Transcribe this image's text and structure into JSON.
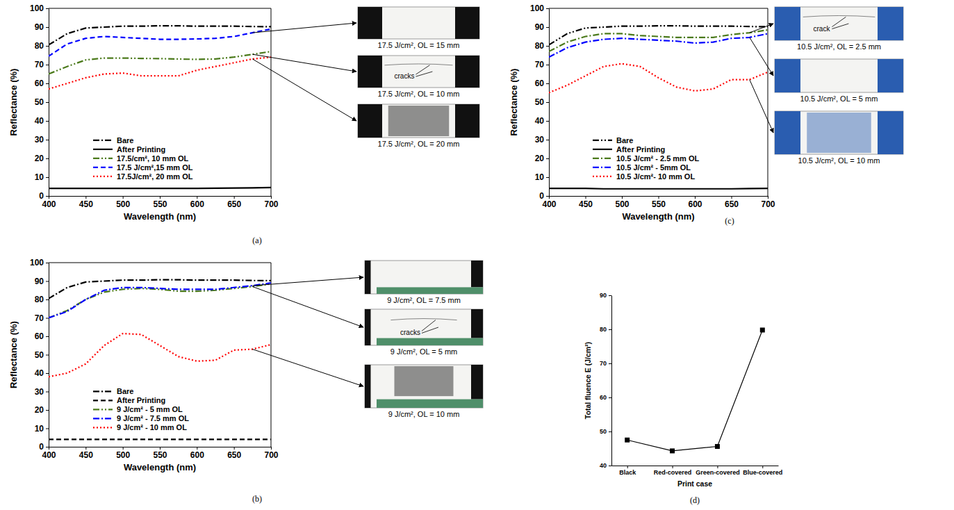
{
  "chart_data": [
    {
      "type": "line",
      "panel": "(a)",
      "x_label": "Wavelength (nm)",
      "y_label": "Reflectance (%)",
      "x": [
        400,
        425,
        450,
        475,
        500,
        525,
        550,
        575,
        600,
        625,
        650,
        675,
        700
      ],
      "xlim": [
        400,
        700
      ],
      "xticks": [
        400,
        450,
        500,
        550,
        600,
        650,
        700
      ],
      "ylim": [
        0,
        100
      ],
      "yticks": [
        0,
        10,
        20,
        30,
        40,
        50,
        60,
        70,
        80,
        90,
        100
      ],
      "legend": "lower left",
      "series": [
        {
          "name": "Bare",
          "color": "#000000",
          "line_style": "dash_dot",
          "values": [
            80.5,
            86.5,
            89.5,
            90,
            90.5,
            90.5,
            90.7,
            90.7,
            90.5,
            90.5,
            90.5,
            90.3,
            90.2
          ]
        },
        {
          "name": "After Printing",
          "color": "#000000",
          "line_style": "solid",
          "values": [
            4,
            4,
            4,
            4,
            4,
            4,
            4,
            4,
            4,
            4.1,
            4.2,
            4.3,
            4.5
          ]
        },
        {
          "name": "17.5/cm², 10 mm OL",
          "color": "#4b7a1b",
          "line_style": "dash_dot_dot",
          "values": [
            65,
            69,
            72.5,
            73.5,
            73.5,
            73.3,
            73.2,
            73,
            72.8,
            73,
            74,
            75.5,
            77
          ]
        },
        {
          "name": "17.5 J/cm²,15 mm OL",
          "color": "#0000ff",
          "line_style": "dashed",
          "values": [
            74.5,
            81,
            84,
            85,
            84.5,
            84,
            83.5,
            83.5,
            83.7,
            84,
            85,
            87,
            89
          ]
        },
        {
          "name": "17.5J/cm², 20 mm OL",
          "color": "#ff0000",
          "line_style": "dotted",
          "values": [
            57,
            60,
            63,
            65,
            65.5,
            64,
            64,
            64,
            67,
            69,
            71,
            73,
            74
          ]
        }
      ],
      "insets": [
        {
          "caption": "17.5 J/cm², OL = 15 mm"
        },
        {
          "caption": "17.5 J/cm², OL = 10 mm",
          "annotation": "cracks"
        },
        {
          "caption": "17.5 J/cm², OL = 20 mm"
        }
      ]
    },
    {
      "type": "line",
      "panel": "(b)",
      "x_label": "Wavelength (nm)",
      "y_label": "Reflectance (%)",
      "x": [
        400,
        425,
        450,
        475,
        500,
        525,
        550,
        575,
        600,
        625,
        650,
        675,
        700
      ],
      "xlim": [
        400,
        700
      ],
      "xticks": [
        400,
        450,
        500,
        550,
        600,
        650,
        700
      ],
      "ylim": [
        0,
        100
      ],
      "yticks": [
        0,
        10,
        20,
        30,
        40,
        50,
        60,
        70,
        80,
        90,
        100
      ],
      "legend": "lower left",
      "series": [
        {
          "name": "Bare",
          "color": "#000000",
          "line_style": "dash_dot",
          "values": [
            80.5,
            86.5,
            89.5,
            90,
            90.5,
            90.5,
            90.7,
            90.7,
            90.5,
            90.5,
            90.5,
            90.3,
            90.2
          ]
        },
        {
          "name": "After Printing",
          "color": "#000000",
          "line_style": "dashed",
          "values": [
            4,
            4,
            4,
            4,
            4,
            4,
            4,
            4,
            4,
            4,
            4,
            4,
            4
          ]
        },
        {
          "name": "9 J/cm² - 5 mm OL",
          "color": "#4b7a1b",
          "line_style": "dash_dot_dot",
          "values": [
            70,
            74,
            80,
            84,
            85.5,
            86,
            85.5,
            84.5,
            84.5,
            85,
            86,
            87,
            88.5
          ]
        },
        {
          "name": "9 J/cm² - 7.5 mm OL",
          "color": "#0000ff",
          "line_style": "dash_dot",
          "values": [
            70,
            73.5,
            80,
            85,
            86.5,
            86.5,
            86,
            85.5,
            85.5,
            85.5,
            86.5,
            87.5,
            89
          ]
        },
        {
          "name": "9 J/cm² - 10 mm OL",
          "color": "#ff0000",
          "line_style": "dotted",
          "values": [
            38,
            40,
            45,
            55,
            61.5,
            61,
            55,
            49,
            46.5,
            47,
            52.5,
            53,
            55.5
          ]
        }
      ],
      "insets": [
        {
          "caption": "9 J/cm², OL = 7.5 mm"
        },
        {
          "caption": "9 J/cm², OL = 5 mm",
          "annotation": "cracks"
        },
        {
          "caption": "9 J/cm², OL = 10 mm"
        }
      ]
    },
    {
      "type": "line",
      "panel": "(c)",
      "x_label": "Wavelength (nm)",
      "y_label": "Reflectance (%)",
      "x": [
        400,
        425,
        450,
        475,
        500,
        525,
        550,
        575,
        600,
        625,
        650,
        675,
        700
      ],
      "xlim": [
        400,
        700
      ],
      "xticks": [
        400,
        450,
        500,
        550,
        600,
        650,
        700
      ],
      "ylim": [
        0,
        100
      ],
      "yticks": [
        0,
        10,
        20,
        30,
        40,
        50,
        60,
        70,
        80,
        90,
        100
      ],
      "legend": "lower left",
      "series": [
        {
          "name": "Bare",
          "color": "#000000",
          "line_style": "dash_dot_dot",
          "values": [
            80.5,
            86.5,
            89.5,
            90,
            90.5,
            90.5,
            90.7,
            90.7,
            90.5,
            90.5,
            90.5,
            90.3,
            90.2
          ]
        },
        {
          "name": "After Printing",
          "color": "#000000",
          "line_style": "solid",
          "values": [
            4,
            4,
            4,
            3.8,
            3.8,
            3.8,
            3.8,
            3.8,
            3.8,
            3.8,
            3.8,
            3.9,
            4
          ]
        },
        {
          "name": "10.5 J/cm² - 2.5 mm OL",
          "color": "#4b7a1b",
          "line_style": "dash_dot",
          "values": [
            77,
            82,
            85,
            86.5,
            86.5,
            85.5,
            85,
            84.5,
            84.5,
            84.5,
            86,
            87,
            88.5
          ]
        },
        {
          "name": "10.5  J/cm² - 5mm OL",
          "color": "#0000ff",
          "line_style": "dash_dot",
          "values": [
            74,
            79,
            82,
            83.5,
            84,
            83.5,
            83,
            82.5,
            81.5,
            82,
            84,
            84.5,
            86.5
          ]
        },
        {
          "name": "10.5 J/cm²- 10 mm OL",
          "color": "#ff0000",
          "line_style": "dotted",
          "values": [
            55,
            59,
            64,
            69,
            70.5,
            69,
            63,
            58,
            56,
            57,
            62,
            62,
            66
          ]
        }
      ],
      "insets": [
        {
          "caption": "10.5 J/cm², OL = 2.5 mm",
          "annotation": "crack"
        },
        {
          "caption": "10.5 J/cm², OL = 5 mm"
        },
        {
          "caption": "10.5 J/cm², OL = 10 mm"
        }
      ]
    },
    {
      "type": "line",
      "panel": "(d)",
      "x_label": "Print case",
      "y_label": "Total fluence E (J/cm²)",
      "categories": [
        "Black",
        "Red-covered",
        "Green-covered",
        "Blue-covered"
      ],
      "values": [
        47.5,
        44.3,
        45.6,
        79.8
      ],
      "color": "#000000",
      "marker": "square",
      "line_style": "solid",
      "ylim": [
        40,
        90
      ],
      "yticks": [
        40,
        50,
        60,
        70,
        80,
        90
      ]
    }
  ]
}
